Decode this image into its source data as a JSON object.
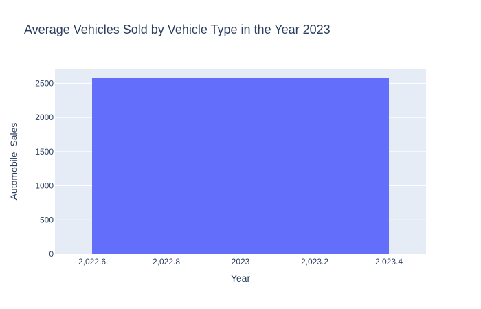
{
  "chart_data": {
    "type": "bar",
    "title": "Average Vehicles Sold by Vehicle Type in the Year 2023",
    "xlabel": "Year",
    "ylabel": "Automobile_Sales",
    "bars": [
      {
        "x": 2023,
        "width": 0.8,
        "value": 2580
      }
    ],
    "xlim": [
      2022.5,
      2023.5
    ],
    "ylim": [
      0,
      2715
    ],
    "xticks": [
      {
        "value": 2022.6,
        "label": "2,022.6"
      },
      {
        "value": 2022.8,
        "label": "2,022.8"
      },
      {
        "value": 2023.0,
        "label": "2023"
      },
      {
        "value": 2023.2,
        "label": "2,023.2"
      },
      {
        "value": 2023.4,
        "label": "2,023.4"
      }
    ],
    "yticks": [
      {
        "value": 0,
        "label": "0"
      },
      {
        "value": 500,
        "label": "500"
      },
      {
        "value": 1000,
        "label": "1000"
      },
      {
        "value": 1500,
        "label": "1500"
      },
      {
        "value": 2000,
        "label": "2000"
      },
      {
        "value": 2500,
        "label": "2500"
      }
    ],
    "grid": true,
    "colors": {
      "bar": "#636efa",
      "plot_bg": "#e5ecf6",
      "grid": "#ffffff",
      "text": "#2a3f5f"
    }
  }
}
